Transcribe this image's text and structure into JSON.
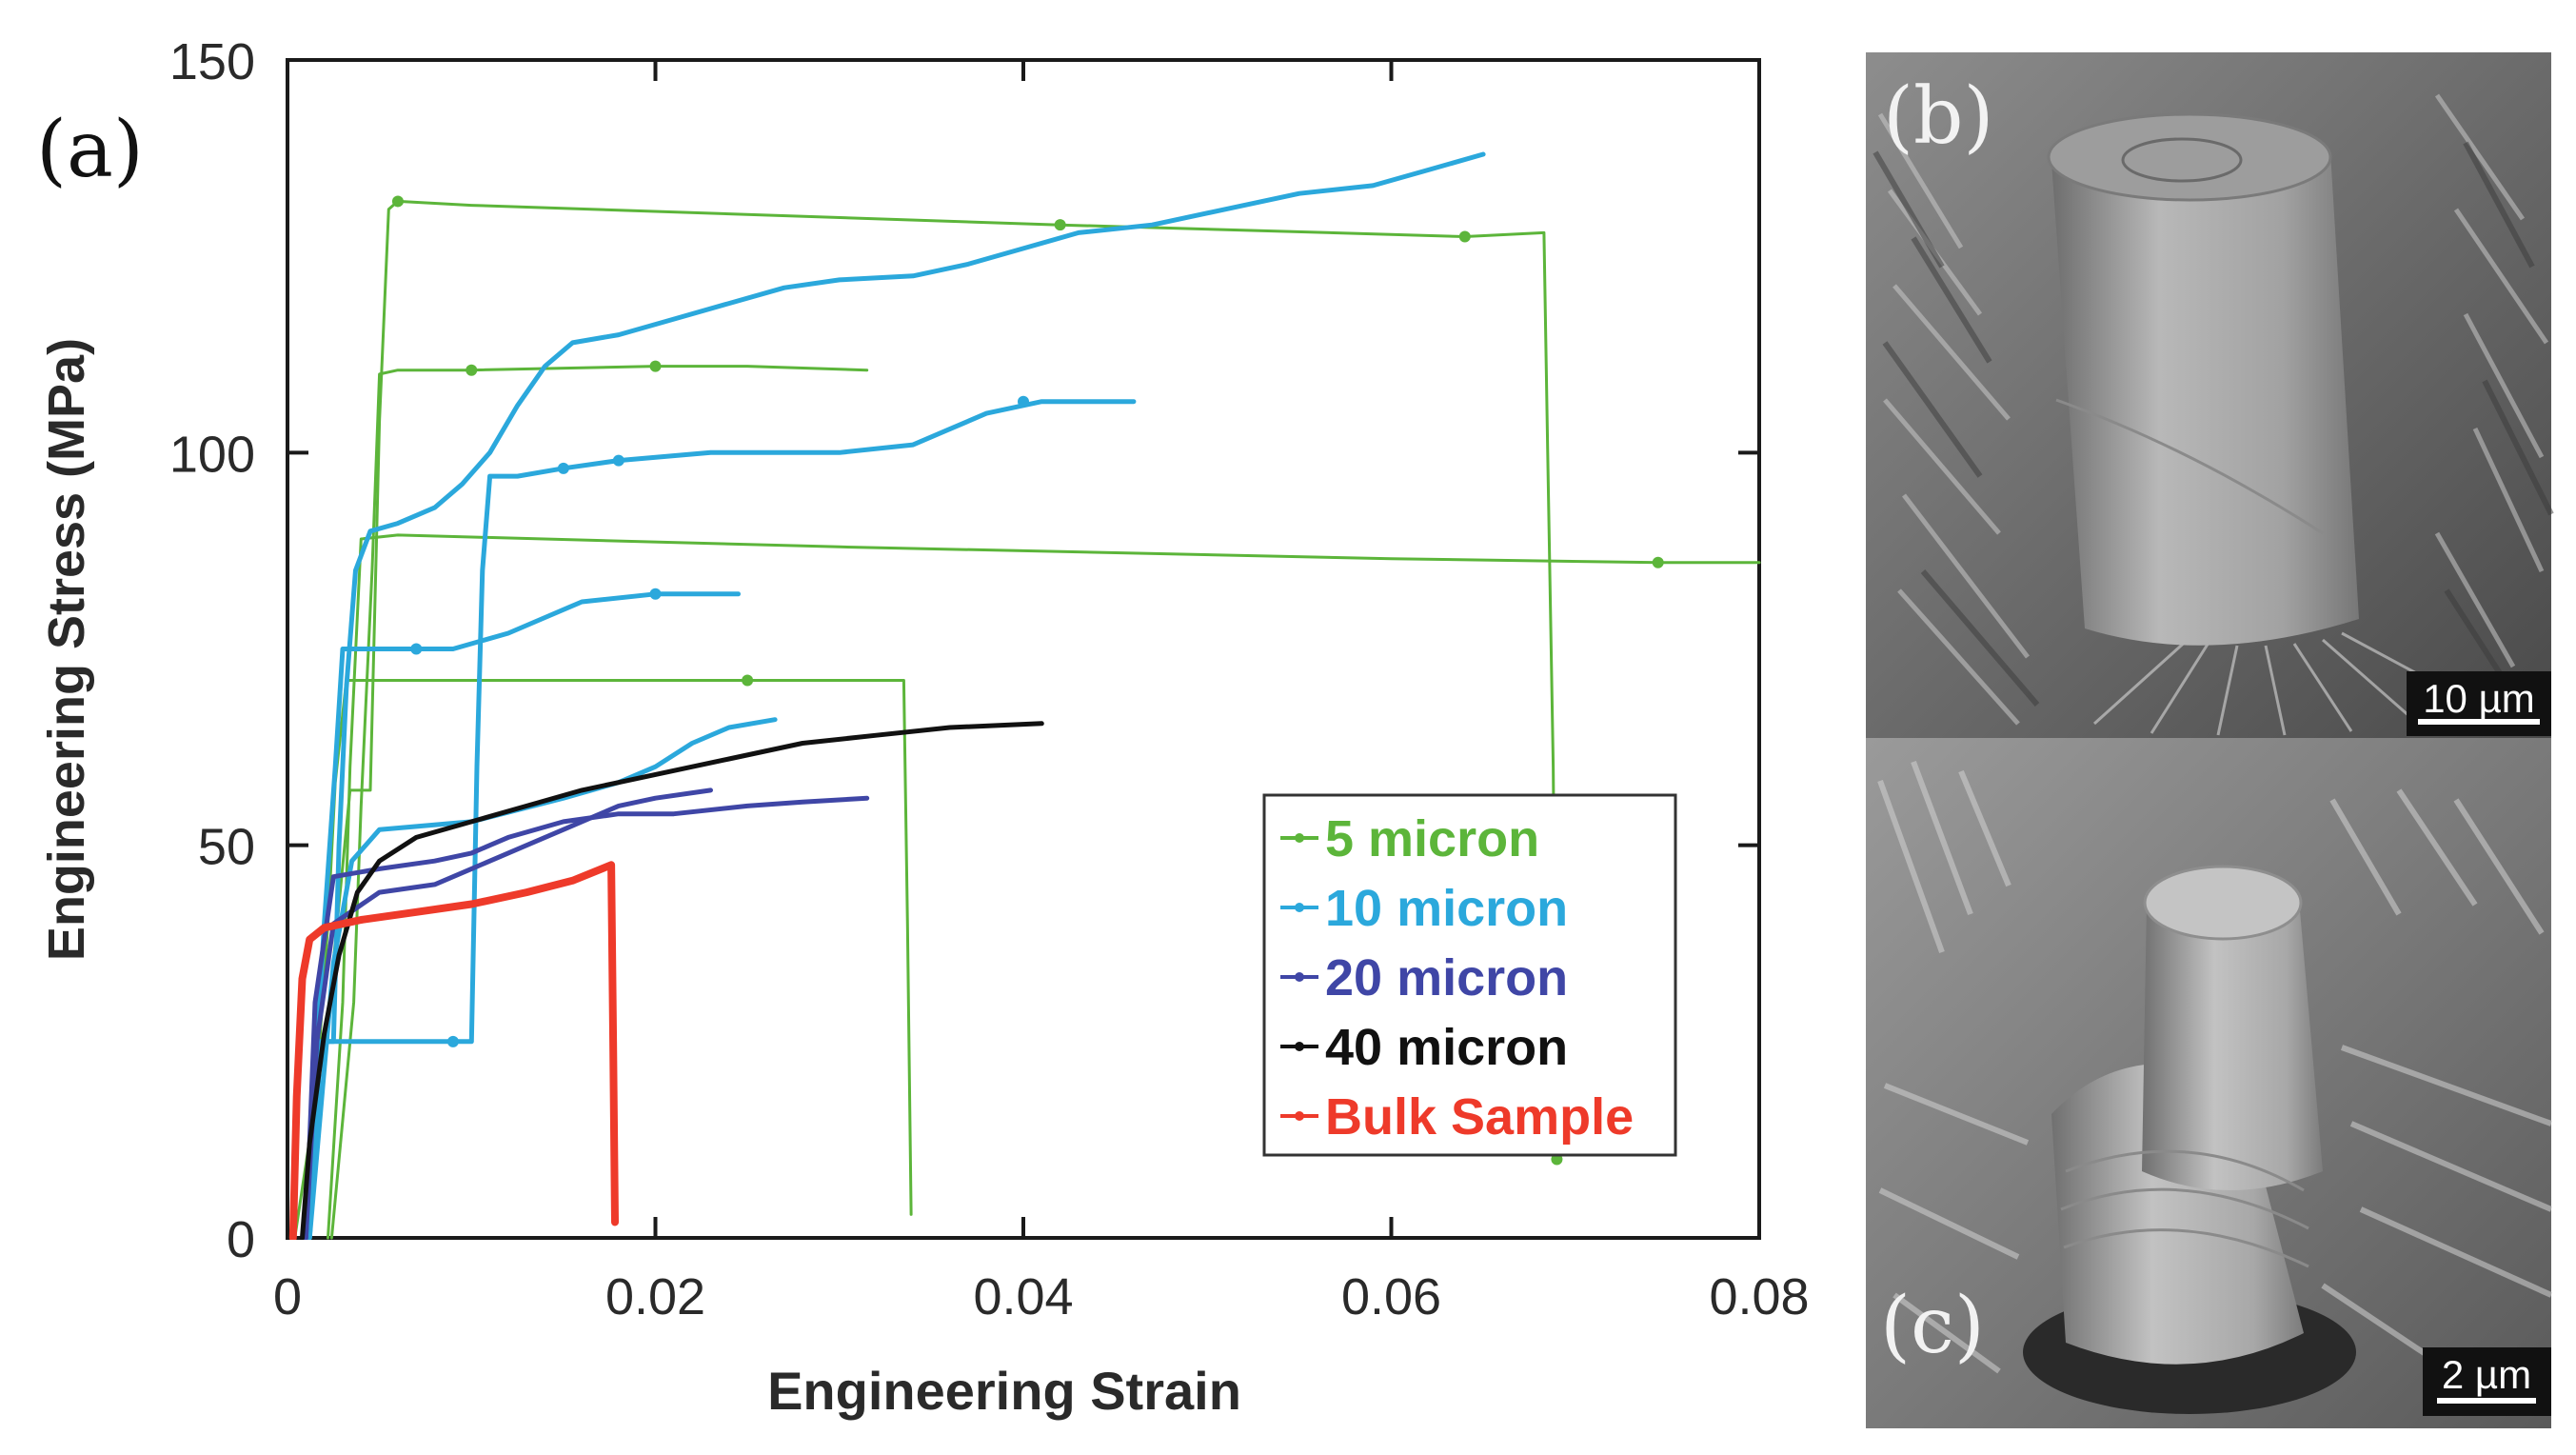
{
  "panels": {
    "a": {
      "label": "(a)"
    },
    "b": {
      "label": "(b)",
      "scale_bar": "10 µm"
    },
    "c": {
      "label": "(c)",
      "scale_bar": "2 µm"
    }
  },
  "colors": {
    "green": "#5cb53a",
    "cyan": "#2ba8dc",
    "blue": "#3f46a6",
    "black": "#111111",
    "red": "#ee3a2a",
    "axis": "#1a1a1a",
    "tick_label": "#2a2a2a"
  },
  "chart_data": {
    "type": "line",
    "title": "",
    "xlabel": "Engineering Strain",
    "ylabel": "Engineering Stress (MPa)",
    "xlim": [
      0,
      0.08
    ],
    "ylim": [
      0,
      150
    ],
    "x_ticks": [
      0,
      0.02,
      0.04,
      0.06,
      0.08
    ],
    "x_tick_labels": [
      "0",
      "0.02",
      "0.04",
      "0.06",
      "0.08"
    ],
    "y_ticks": [
      0,
      50,
      100,
      150
    ],
    "y_tick_labels": [
      "0",
      "50",
      "100",
      "150"
    ],
    "grid": false,
    "legend_position": "bottom-right",
    "legend": [
      {
        "label": "5 micron",
        "color": "#5cb53a"
      },
      {
        "label": "10 micron",
        "color": "#2ba8dc"
      },
      {
        "label": "20 micron",
        "color": "#3f46a6"
      },
      {
        "label": "40 micron",
        "color": "#111111"
      },
      {
        "label": "Bulk Sample",
        "color": "#ee3a2a"
      }
    ],
    "series": [
      {
        "name": "5 micron",
        "color": "#5cb53a",
        "width": 3,
        "curves": [
          [
            [
              0.0004,
              0
            ],
            [
              0.0022,
              28
            ],
            [
              0.0034,
              57
            ],
            [
              0.0045,
              57
            ],
            [
              0.005,
              104
            ],
            [
              0.0055,
              131
            ],
            [
              0.006,
              132
            ],
            [
              0.01,
              131.5
            ],
            [
              0.042,
              129
            ],
            [
              0.064,
              127.5
            ],
            [
              0.0683,
              128
            ],
            [
              0.0685,
              100
            ],
            [
              0.0688,
              60
            ],
            [
              0.069,
              10
            ]
          ],
          [
            [
              0.0024,
              0
            ],
            [
              0.0036,
              30
            ],
            [
              0.004,
              55
            ],
            [
              0.0046,
              85
            ],
            [
              0.005,
              110
            ],
            [
              0.006,
              110.5
            ],
            [
              0.01,
              110.5
            ],
            [
              0.02,
              111
            ],
            [
              0.025,
              111
            ],
            [
              0.0315,
              110.5
            ]
          ],
          [
            [
              0.0022,
              0
            ],
            [
              0.003,
              30
            ],
            [
              0.0034,
              60
            ],
            [
              0.004,
              89
            ],
            [
              0.006,
              89.5
            ],
            [
              0.03,
              88
            ],
            [
              0.06,
              86.5
            ],
            [
              0.0745,
              86
            ],
            [
              0.08,
              86
            ]
          ],
          [
            [
              0.001,
              0
            ],
            [
              0.0022,
              40
            ],
            [
              0.0026,
              58
            ],
            [
              0.0032,
              71
            ],
            [
              0.01,
              71
            ],
            [
              0.025,
              71
            ],
            [
              0.0335,
              71
            ],
            [
              0.0337,
              40
            ],
            [
              0.0339,
              3
            ]
          ]
        ]
      },
      {
        "name": "10 micron",
        "color": "#2ba8dc",
        "width": 5,
        "curves": [
          [
            [
              0.0012,
              0
            ],
            [
              0.0018,
              25
            ],
            [
              0.0025,
              25
            ],
            [
              0.0028,
              50
            ],
            [
              0.0032,
              70
            ],
            [
              0.0037,
              85
            ],
            [
              0.0045,
              90
            ],
            [
              0.006,
              91
            ],
            [
              0.007,
              92
            ],
            [
              0.008,
              93
            ],
            [
              0.0095,
              96
            ],
            [
              0.011,
              100
            ],
            [
              0.0125,
              106
            ],
            [
              0.014,
              111
            ],
            [
              0.0155,
              114
            ],
            [
              0.018,
              115
            ],
            [
              0.021,
              117
            ],
            [
              0.024,
              119
            ],
            [
              0.027,
              121
            ],
            [
              0.03,
              122
            ],
            [
              0.034,
              122.5
            ],
            [
              0.037,
              124
            ],
            [
              0.04,
              126
            ],
            [
              0.043,
              128
            ],
            [
              0.047,
              129
            ],
            [
              0.051,
              131
            ],
            [
              0.055,
              133
            ],
            [
              0.059,
              134
            ],
            [
              0.062,
              136
            ],
            [
              0.065,
              138
            ]
          ],
          [
            [
              0.0012,
              0
            ],
            [
              0.0018,
              25
            ],
            [
              0.009,
              25
            ],
            [
              0.01,
              25
            ],
            [
              0.0103,
              60
            ],
            [
              0.0106,
              85
            ],
            [
              0.011,
              97
            ],
            [
              0.0125,
              97
            ],
            [
              0.015,
              98
            ],
            [
              0.018,
              99
            ],
            [
              0.023,
              100
            ],
            [
              0.03,
              100
            ],
            [
              0.034,
              101
            ],
            [
              0.036,
              103
            ],
            [
              0.038,
              105
            ],
            [
              0.041,
              106.5
            ],
            [
              0.046,
              106.5
            ]
          ],
          [
            [
              0.001,
              0
            ],
            [
              0.002,
              40
            ],
            [
              0.0026,
              60
            ],
            [
              0.003,
              75
            ],
            [
              0.009,
              75
            ],
            [
              0.012,
              77
            ],
            [
              0.014,
              79
            ],
            [
              0.016,
              81
            ],
            [
              0.02,
              82
            ],
            [
              0.0245,
              82
            ]
          ],
          [
            [
              0.0012,
              0
            ],
            [
              0.0025,
              35
            ],
            [
              0.0035,
              48
            ],
            [
              0.005,
              52
            ],
            [
              0.01,
              53
            ],
            [
              0.015,
              56
            ],
            [
              0.018,
              58
            ],
            [
              0.02,
              60
            ],
            [
              0.022,
              63
            ],
            [
              0.024,
              65
            ],
            [
              0.0265,
              66
            ]
          ]
        ]
      },
      {
        "name": "20 micron",
        "color": "#3f46a6",
        "width": 5,
        "curves": [
          [
            [
              0.001,
              0
            ],
            [
              0.0015,
              30
            ],
            [
              0.0025,
              46
            ],
            [
              0.005,
              47
            ],
            [
              0.008,
              48
            ],
            [
              0.01,
              49
            ],
            [
              0.012,
              51
            ],
            [
              0.015,
              53
            ],
            [
              0.018,
              54
            ],
            [
              0.021,
              54
            ],
            [
              0.025,
              55
            ],
            [
              0.028,
              55.5
            ],
            [
              0.0315,
              56
            ]
          ],
          [
            [
              0.001,
              0
            ],
            [
              0.0016,
              25
            ],
            [
              0.0025,
              40
            ],
            [
              0.005,
              44
            ],
            [
              0.008,
              45
            ],
            [
              0.01,
              47
            ],
            [
              0.012,
              49
            ],
            [
              0.015,
              52
            ],
            [
              0.018,
              55
            ],
            [
              0.02,
              56
            ],
            [
              0.023,
              57
            ]
          ]
        ]
      },
      {
        "name": "40 micron",
        "color": "#111111",
        "width": 5,
        "curves": [
          [
            [
              0.0008,
              0
            ],
            [
              0.0012,
              12
            ],
            [
              0.002,
              26
            ],
            [
              0.0028,
              36
            ],
            [
              0.0038,
              44
            ],
            [
              0.005,
              48
            ],
            [
              0.007,
              51
            ],
            [
              0.01,
              53
            ],
            [
              0.013,
              55
            ],
            [
              0.016,
              57
            ],
            [
              0.018,
              58
            ],
            [
              0.02,
              59
            ],
            [
              0.024,
              61
            ],
            [
              0.028,
              63
            ],
            [
              0.032,
              64
            ],
            [
              0.036,
              65
            ],
            [
              0.041,
              65.5
            ]
          ]
        ]
      },
      {
        "name": "Bulk Sample",
        "color": "#ee3a2a",
        "width": 8,
        "curves": [
          [
            [
              0.0003,
              0
            ],
            [
              0.0005,
              18
            ],
            [
              0.0008,
              33
            ],
            [
              0.0012,
              38
            ],
            [
              0.002,
              39.5
            ],
            [
              0.004,
              40.5
            ],
            [
              0.007,
              41.5
            ],
            [
              0.01,
              42.5
            ],
            [
              0.013,
              44
            ],
            [
              0.0155,
              45.5
            ],
            [
              0.0176,
              47.5
            ],
            [
              0.0177,
              25
            ],
            [
              0.0178,
              2
            ]
          ]
        ]
      }
    ],
    "markers": [
      {
        "series": "5 micron",
        "points": [
          [
            0.006,
            132
          ],
          [
            0.042,
            129
          ],
          [
            0.064,
            127.5
          ],
          [
            0.01,
            110.5
          ],
          [
            0.02,
            111
          ],
          [
            0.0745,
            86
          ],
          [
            0.025,
            71
          ],
          [
            0.069,
            10
          ]
        ]
      },
      {
        "series": "10 micron",
        "points": [
          [
            0.009,
            25
          ],
          [
            0.015,
            98
          ],
          [
            0.018,
            99
          ],
          [
            0.04,
            106.5
          ],
          [
            0.02,
            82
          ],
          [
            0.007,
            75
          ]
        ]
      }
    ]
  }
}
